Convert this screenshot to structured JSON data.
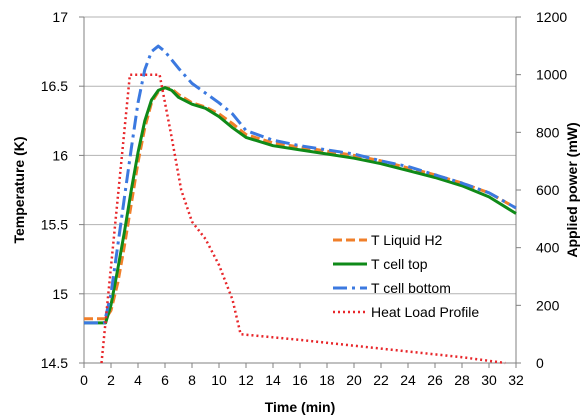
{
  "chart_data": {
    "type": "line",
    "xlabel": "Time (min)",
    "ylabel": "Temperature (K)",
    "y2label": "Applied power (mW)",
    "xlim": [
      0,
      32
    ],
    "ylim": [
      14.5,
      17
    ],
    "y2lim": [
      0,
      1200
    ],
    "xticks": [
      "0",
      "2",
      "4",
      "6",
      "8",
      "10",
      "12",
      "14",
      "16",
      "18",
      "20",
      "22",
      "24",
      "26",
      "28",
      "30",
      "32"
    ],
    "yticks": [
      "14.5",
      "15",
      "15.5",
      "16",
      "16.5",
      "17"
    ],
    "y2ticks": [
      "0",
      "200",
      "400",
      "600",
      "800",
      "1000",
      "1200"
    ],
    "grid": true,
    "legend_position": "lower-right",
    "series": [
      {
        "name": "T Liquid H2",
        "axis": "left",
        "color": "#f07f2a",
        "style": "dashed",
        "x": [
          0,
          1.6,
          2.0,
          2.5,
          3.0,
          3.5,
          4.0,
          4.5,
          5.0,
          5.5,
          6.0,
          6.5,
          7.0,
          8.0,
          9.0,
          10.0,
          11.0,
          12.0,
          14.0,
          16.0,
          18.0,
          20.0,
          22.0,
          24.0,
          26.0,
          28.0,
          30.0,
          32.0
        ],
        "y": [
          14.82,
          14.82,
          14.88,
          15.08,
          15.35,
          15.65,
          15.95,
          16.2,
          16.38,
          16.46,
          16.49,
          16.48,
          16.44,
          16.38,
          16.35,
          16.3,
          16.23,
          16.15,
          16.09,
          16.06,
          16.03,
          16.0,
          15.96,
          15.91,
          15.86,
          15.8,
          15.73,
          15.62
        ]
      },
      {
        "name": "T cell top",
        "axis": "left",
        "color": "#0f8a18",
        "style": "solid",
        "x": [
          0,
          1.6,
          2.0,
          2.5,
          3.0,
          3.5,
          4.0,
          4.5,
          5.0,
          5.5,
          6.0,
          6.5,
          7.0,
          8.0,
          9.0,
          10.0,
          11.0,
          12.0,
          14.0,
          16.0,
          18.0,
          20.0,
          22.0,
          24.0,
          26.0,
          28.0,
          30.0,
          32.0
        ],
        "y": [
          14.79,
          14.79,
          14.92,
          15.18,
          15.45,
          15.75,
          16.02,
          16.25,
          16.4,
          16.47,
          16.49,
          16.47,
          16.42,
          16.37,
          16.34,
          16.28,
          16.2,
          16.13,
          16.07,
          16.04,
          16.01,
          15.98,
          15.94,
          15.89,
          15.84,
          15.78,
          15.7,
          15.58
        ]
      },
      {
        "name": "T cell bottom",
        "axis": "left",
        "color": "#3b79e0",
        "style": "dashdot",
        "x": [
          0,
          1.5,
          2.0,
          2.5,
          3.0,
          3.5,
          4.0,
          4.5,
          5.0,
          5.5,
          6.0,
          7.0,
          8.0,
          9.0,
          10.0,
          11.0,
          12.0,
          14.0,
          16.0,
          18.0,
          20.0,
          22.0,
          24.0,
          26.0,
          28.0,
          30.0,
          32.0
        ],
        "y": [
          14.79,
          14.79,
          15.0,
          15.35,
          15.7,
          16.05,
          16.38,
          16.62,
          16.75,
          16.79,
          16.75,
          16.63,
          16.52,
          16.45,
          16.38,
          16.3,
          16.18,
          16.11,
          16.07,
          16.04,
          16.01,
          15.96,
          15.92,
          15.86,
          15.8,
          15.73,
          15.62
        ]
      },
      {
        "name": "Heat Load Profile",
        "axis": "right",
        "color": "#e8262a",
        "style": "dotted",
        "x": [
          1.3,
          3.4,
          5.6,
          6.5,
          7.2,
          8.0,
          9.0,
          10.0,
          11.0,
          11.6,
          16.0,
          20.0,
          24.0,
          28.0,
          31.2
        ],
        "y": [
          0,
          1000,
          1000,
          780,
          600,
          490,
          430,
          340,
          220,
          100,
          80,
          60,
          40,
          20,
          0
        ]
      }
    ]
  }
}
